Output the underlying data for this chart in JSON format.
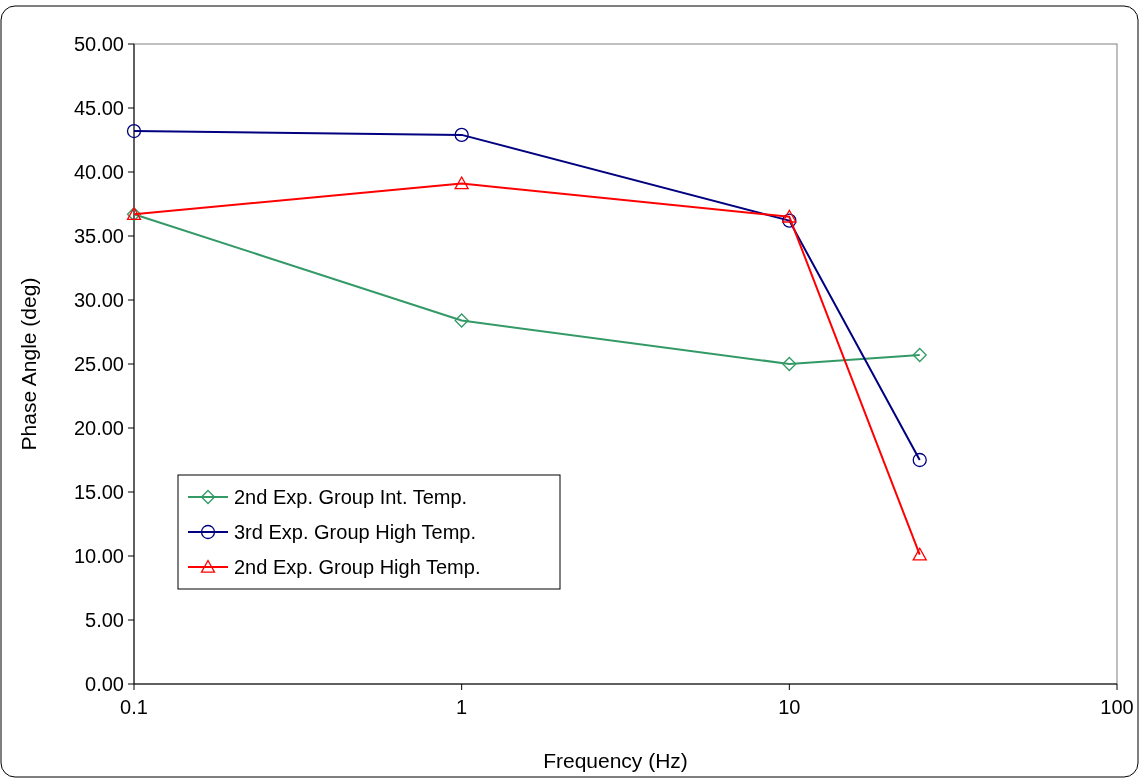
{
  "chart_data": {
    "type": "line",
    "xlabel": "Frequency (Hz)",
    "ylabel": "Phase Angle (deg)",
    "log": "x",
    "xlim": [
      0.1,
      100
    ],
    "xticks": [
      0.1,
      1,
      10,
      100
    ],
    "ylim": [
      0,
      50
    ],
    "yticks": [
      {
        "value": 0,
        "label": "0.00"
      },
      {
        "value": 5,
        "label": "5.00"
      },
      {
        "value": 10,
        "label": "10.00"
      },
      {
        "value": 15,
        "label": "15.00"
      },
      {
        "value": 20,
        "label": "20.00"
      },
      {
        "value": 25,
        "label": "25.00"
      },
      {
        "value": 30,
        "label": "30.00"
      },
      {
        "value": 35,
        "label": "35.00"
      },
      {
        "value": 40,
        "label": "40.00"
      },
      {
        "value": 45,
        "label": "45.00"
      },
      {
        "value": 50,
        "label": "50.00"
      }
    ],
    "x": [
      0.1,
      1,
      10,
      25
    ],
    "legend": "bottom left",
    "grid": false,
    "line_style": "solid",
    "series": [
      {
        "name": "2nd Exp. Group Int. Temp.",
        "color": "#339966",
        "marker": "diamond",
        "values": [
          36.7,
          28.4,
          25.0,
          25.7
        ]
      },
      {
        "name": "3rd Exp. Group High Temp.",
        "color": "#000080",
        "marker": "circle",
        "values": [
          43.2,
          42.9,
          36.2,
          17.5
        ]
      },
      {
        "name": "2nd Exp. Group High Temp.",
        "color": "#ff0000",
        "marker": "triangle",
        "values": [
          36.7,
          39.1,
          36.5,
          10.1
        ]
      }
    ]
  }
}
